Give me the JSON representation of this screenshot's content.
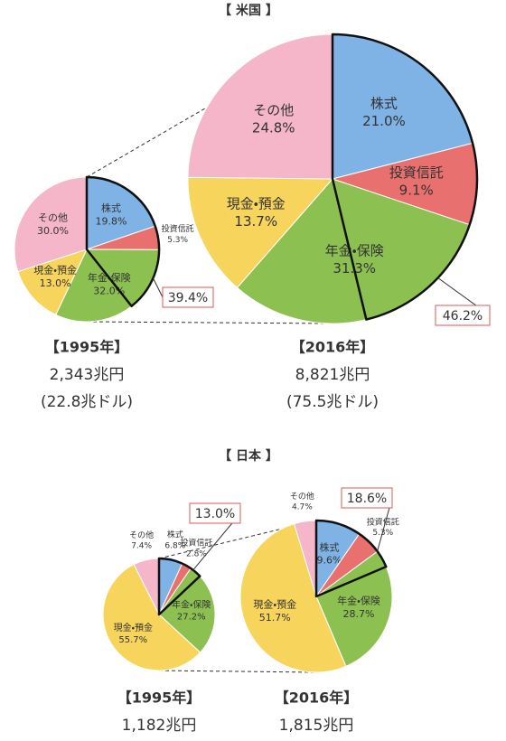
{
  "section_titles": [
    "【 米国 】",
    "【 日本 】"
  ],
  "chart_data": [
    {
      "type": "pie",
      "year_label": "【1995年】",
      "total": "2,343兆円",
      "total_sub": "(22.8兆ドル)",
      "categories": [
        "株式",
        "投資信託",
        "年金・保険",
        "現金・預金",
        "その他"
      ],
      "values": [
        19.8,
        5.3,
        32.0,
        13.0,
        30.0
      ],
      "value_labels": [
        "19.8%",
        "5.3%",
        "32.0%",
        "13.0%",
        "30.0%"
      ],
      "colors": [
        "#7fb2e5",
        "#e8716f",
        "#8cc152",
        "#f7d45c",
        "#f4b6c8"
      ],
      "highlight_value": 39.4,
      "highlight_label": "39.4%"
    },
    {
      "type": "pie",
      "year_label": "【2016年】",
      "total": "8,821兆円",
      "total_sub": "(75.5兆ドル)",
      "categories": [
        "株式",
        "投資信託",
        "年金・保険",
        "現金・預金",
        "その他"
      ],
      "values": [
        21.0,
        9.1,
        31.3,
        13.7,
        24.8
      ],
      "value_labels": [
        "21.0%",
        "9.1%",
        "31.3%",
        "13.7%",
        "24.8%"
      ],
      "colors": [
        "#7fb2e5",
        "#e8716f",
        "#8cc152",
        "#f7d45c",
        "#f4b6c8"
      ],
      "highlight_value": 46.2,
      "highlight_label": "46.2%"
    },
    {
      "type": "pie",
      "year_label": "【1995年】",
      "total": "1,182兆円",
      "categories": [
        "株式",
        "投資信託",
        "年金・保険",
        "現金・預金",
        "その他"
      ],
      "values": [
        6.8,
        2.8,
        27.2,
        55.7,
        7.4
      ],
      "value_labels": [
        "6.8%",
        "2.8%",
        "27.2%",
        "55.7%",
        "7.4%"
      ],
      "colors": [
        "#7fb2e5",
        "#e8716f",
        "#8cc152",
        "#f7d45c",
        "#f4b6c8"
      ],
      "highlight_value": 13.0,
      "highlight_label": "13.0%"
    },
    {
      "type": "pie",
      "year_label": "【2016年】",
      "total": "1,815兆円",
      "categories": [
        "株式",
        "投資信託",
        "年金・保険",
        "現金・預金",
        "その他"
      ],
      "values": [
        9.6,
        5.3,
        28.7,
        51.7,
        4.7
      ],
      "value_labels": [
        "9.6%",
        "5.3%",
        "28.7%",
        "51.7%",
        "4.7%"
      ],
      "colors": [
        "#7fb2e5",
        "#e8716f",
        "#8cc152",
        "#f7d45c",
        "#f4b6c8"
      ],
      "highlight_value": 18.6,
      "highlight_label": "18.6%"
    }
  ]
}
